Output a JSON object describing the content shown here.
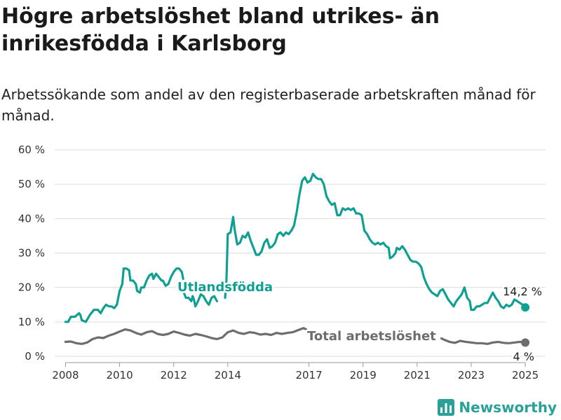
{
  "title": "Högre arbetslöshet bland utrikes- än inrikesfödda i Karlsborg",
  "subtitle": "Arbetssökande som andel av den registerbaserade arbetskraften månad för månad.",
  "brand": "Newsworthy",
  "colors": {
    "utlandsfodda": "#0fa093",
    "total": "#6d6d6d",
    "grid": "#dddddd",
    "brand": "#2aa198"
  },
  "chart_data": {
    "type": "line",
    "title": "Högre arbetslöshet bland utrikes- än inrikesfödda i Karlsborg",
    "subtitle": "Arbetssökande som andel av den registerbaserade arbetskraften månad för månad.",
    "xlabel": "",
    "ylabel": "",
    "xlim": [
      2007.6,
      2025.75
    ],
    "ylim": [
      0,
      60
    ],
    "yticks": [
      0,
      10,
      20,
      30,
      40,
      50,
      60
    ],
    "ytick_labels": [
      "0 %",
      "10 %",
      "20 %",
      "30 %",
      "40 %",
      "50 %",
      "60 %"
    ],
    "xticks": [
      2008,
      2010,
      2012,
      2014,
      2017,
      2019,
      2021,
      2023,
      2025
    ],
    "xtick_labels": [
      "2008",
      "2010",
      "2012",
      "2014",
      "2017",
      "2019",
      "2021",
      "2023",
      "2025"
    ],
    "grid": "horizontal",
    "legend": "direct labels",
    "series": [
      {
        "name": "Utlandsfödda",
        "key": "utlandsfodda",
        "end_label": "14,2 %",
        "segments": [
          [
            [
              2008.0,
              10
            ],
            [
              2008.1,
              10
            ],
            [
              2008.2,
              11.5
            ],
            [
              2008.35,
              11.5
            ],
            [
              2008.5,
              12.5
            ],
            [
              2008.55,
              12
            ],
            [
              2008.6,
              10.5
            ],
            [
              2008.75,
              10
            ],
            [
              2008.9,
              12
            ],
            [
              2009.05,
              13.5
            ],
            [
              2009.2,
              13.5
            ],
            [
              2009.3,
              12.5
            ],
            [
              2009.4,
              14
            ],
            [
              2009.5,
              15
            ],
            [
              2009.6,
              14.5
            ],
            [
              2009.7,
              14.5
            ],
            [
              2009.8,
              14
            ],
            [
              2009.9,
              15
            ],
            [
              2009.95,
              17
            ],
            [
              2010.0,
              19
            ],
            [
              2010.05,
              20
            ],
            [
              2010.1,
              21
            ],
            [
              2010.15,
              25.5
            ],
            [
              2010.25,
              25.5
            ],
            [
              2010.35,
              25
            ],
            [
              2010.4,
              22
            ],
            [
              2010.5,
              22
            ],
            [
              2010.6,
              21
            ],
            [
              2010.65,
              19
            ],
            [
              2010.75,
              18.5
            ],
            [
              2010.8,
              20
            ],
            [
              2010.9,
              20
            ],
            [
              2011.0,
              22
            ],
            [
              2011.1,
              23.5
            ],
            [
              2011.2,
              24
            ],
            [
              2011.25,
              22.5
            ],
            [
              2011.35,
              24
            ],
            [
              2011.45,
              23
            ],
            [
              2011.55,
              22
            ],
            [
              2011.6,
              22
            ],
            [
              2011.7,
              20.5
            ],
            [
              2011.8,
              21
            ],
            [
              2011.9,
              23
            ],
            [
              2012.0,
              24.5
            ],
            [
              2012.1,
              25.5
            ],
            [
              2012.2,
              25.5
            ],
            [
              2012.3,
              24.5
            ],
            [
              2012.35,
              22.5
            ]
          ],
          [
            [
              2012.35,
              19
            ],
            [
              2012.45,
              17
            ],
            [
              2012.55,
              17
            ],
            [
              2012.65,
              16
            ],
            [
              2012.7,
              17.5
            ],
            [
              2012.75,
              16.5
            ],
            [
              2012.8,
              14.5
            ],
            [
              2012.9,
              16
            ],
            [
              2013.0,
              18
            ],
            [
              2013.1,
              17.5
            ],
            [
              2013.2,
              16
            ],
            [
              2013.3,
              15
            ],
            [
              2013.4,
              17
            ],
            [
              2013.5,
              17.5
            ],
            [
              2013.6,
              16
            ]
          ],
          [
            [
              2013.9,
              17
            ],
            [
              2013.95,
              22
            ],
            [
              2014.0,
              35.5
            ],
            [
              2014.1,
              36
            ],
            [
              2014.2,
              40.5
            ],
            [
              2014.25,
              37
            ],
            [
              2014.35,
              32.5
            ],
            [
              2014.45,
              33
            ],
            [
              2014.55,
              35
            ],
            [
              2014.65,
              34.5
            ],
            [
              2014.75,
              36
            ],
            [
              2014.85,
              33.5
            ],
            [
              2014.95,
              31.5
            ],
            [
              2015.05,
              29.5
            ],
            [
              2015.15,
              29.5
            ],
            [
              2015.25,
              30.5
            ],
            [
              2015.35,
              33
            ],
            [
              2015.45,
              34
            ],
            [
              2015.55,
              31.5
            ],
            [
              2015.65,
              32
            ],
            [
              2015.75,
              33
            ],
            [
              2015.85,
              35.5
            ],
            [
              2015.95,
              36
            ],
            [
              2016.05,
              35
            ],
            [
              2016.15,
              36
            ],
            [
              2016.25,
              35.5
            ],
            [
              2016.35,
              36.5
            ],
            [
              2016.45,
              38
            ],
            [
              2016.55,
              42
            ],
            [
              2016.65,
              47
            ],
            [
              2016.75,
              51
            ],
            [
              2016.85,
              52
            ],
            [
              2016.95,
              50.5
            ],
            [
              2017.05,
              51
            ],
            [
              2017.15,
              53
            ],
            [
              2017.25,
              52
            ],
            [
              2017.35,
              51.5
            ],
            [
              2017.45,
              51.5
            ],
            [
              2017.55,
              50
            ],
            [
              2017.65,
              46.5
            ],
            [
              2017.75,
              45
            ],
            [
              2017.85,
              44
            ],
            [
              2017.95,
              44.5
            ],
            [
              2018.05,
              41
            ],
            [
              2018.15,
              41
            ],
            [
              2018.25,
              43
            ],
            [
              2018.35,
              42.5
            ],
            [
              2018.45,
              43
            ],
            [
              2018.55,
              42.5
            ],
            [
              2018.65,
              43
            ],
            [
              2018.75,
              41.5
            ],
            [
              2018.85,
              41.5
            ],
            [
              2018.95,
              41
            ],
            [
              2019.05,
              36.5
            ],
            [
              2019.15,
              35.5
            ],
            [
              2019.25,
              34
            ],
            [
              2019.35,
              33
            ],
            [
              2019.45,
              32.5
            ],
            [
              2019.55,
              33
            ],
            [
              2019.65,
              32.5
            ],
            [
              2019.75,
              33
            ],
            [
              2019.85,
              32
            ],
            [
              2019.95,
              31.5
            ],
            [
              2020.0,
              28.5
            ],
            [
              2020.1,
              29
            ],
            [
              2020.2,
              30
            ],
            [
              2020.25,
              31.5
            ],
            [
              2020.35,
              31
            ],
            [
              2020.45,
              32
            ],
            [
              2020.55,
              31
            ],
            [
              2020.65,
              29.5
            ],
            [
              2020.75,
              28
            ],
            [
              2020.85,
              27.5
            ],
            [
              2020.95,
              27.5
            ],
            [
              2021.05,
              27
            ],
            [
              2021.15,
              26
            ],
            [
              2021.25,
              23
            ],
            [
              2021.35,
              21
            ],
            [
              2021.45,
              19.5
            ],
            [
              2021.55,
              18.5
            ],
            [
              2021.65,
              18
            ],
            [
              2021.75,
              17.5
            ],
            [
              2021.85,
              19
            ],
            [
              2021.95,
              19.5
            ],
            [
              2022.05,
              18
            ],
            [
              2022.15,
              16.5
            ],
            [
              2022.25,
              15.5
            ],
            [
              2022.35,
              14.5
            ],
            [
              2022.45,
              16
            ],
            [
              2022.55,
              17
            ],
            [
              2022.65,
              18
            ],
            [
              2022.75,
              20
            ],
            [
              2022.85,
              17
            ],
            [
              2022.95,
              16
            ],
            [
              2023.0,
              13.5
            ],
            [
              2023.1,
              13.5
            ],
            [
              2023.2,
              14.5
            ],
            [
              2023.3,
              14.5
            ],
            [
              2023.4,
              15
            ],
            [
              2023.5,
              15.5
            ],
            [
              2023.6,
              15.5
            ],
            [
              2023.7,
              17
            ],
            [
              2023.8,
              18.5
            ],
            [
              2023.9,
              17
            ],
            [
              2024.0,
              16
            ],
            [
              2024.1,
              14.5
            ],
            [
              2024.2,
              14
            ],
            [
              2024.3,
              15
            ],
            [
              2024.4,
              14.5
            ],
            [
              2024.5,
              15
            ],
            [
              2024.6,
              16.5
            ],
            [
              2024.7,
              16
            ],
            [
              2024.8,
              15.5
            ],
            [
              2024.9,
              15
            ],
            [
              2025.0,
              14.2
            ]
          ]
        ]
      },
      {
        "name": "Total arbetslöshet",
        "key": "total",
        "end_label": "4 %",
        "segments": [
          [
            [
              2008.0,
              4.2
            ],
            [
              2008.2,
              4.3
            ],
            [
              2008.4,
              3.8
            ],
            [
              2008.6,
              3.6
            ],
            [
              2008.8,
              4
            ],
            [
              2009.0,
              5
            ],
            [
              2009.2,
              5.5
            ],
            [
              2009.4,
              5.3
            ],
            [
              2009.6,
              6
            ],
            [
              2009.8,
              6.5
            ],
            [
              2010.0,
              7.2
            ],
            [
              2010.2,
              7.8
            ],
            [
              2010.4,
              7.5
            ],
            [
              2010.6,
              6.8
            ],
            [
              2010.8,
              6.3
            ],
            [
              2011.0,
              7
            ],
            [
              2011.2,
              7.3
            ],
            [
              2011.4,
              6.5
            ],
            [
              2011.6,
              6.2
            ],
            [
              2011.8,
              6.5
            ],
            [
              2012.0,
              7.2
            ],
            [
              2012.2,
              6.8
            ],
            [
              2012.4,
              6.3
            ],
            [
              2012.6,
              6
            ],
            [
              2012.8,
              6.5
            ],
            [
              2013.0,
              6.2
            ],
            [
              2013.2,
              5.8
            ],
            [
              2013.4,
              5.3
            ],
            [
              2013.6,
              5
            ],
            [
              2013.8,
              5.5
            ],
            [
              2014.0,
              7
            ],
            [
              2014.2,
              7.5
            ],
            [
              2014.4,
              6.8
            ],
            [
              2014.6,
              6.5
            ],
            [
              2014.8,
              7
            ],
            [
              2015.0,
              6.8
            ],
            [
              2015.2,
              6.3
            ],
            [
              2015.4,
              6.5
            ],
            [
              2015.6,
              6.2
            ],
            [
              2015.8,
              6.8
            ],
            [
              2016.0,
              6.5
            ],
            [
              2016.2,
              6.8
            ],
            [
              2016.4,
              7
            ],
            [
              2016.6,
              7.6
            ],
            [
              2016.8,
              8.2
            ],
            [
              2016.9,
              7.8
            ]
          ],
          [
            [
              2021.9,
              5.2
            ],
            [
              2022.0,
              4.8
            ],
            [
              2022.2,
              4.2
            ],
            [
              2022.4,
              3.9
            ],
            [
              2022.6,
              4.5
            ],
            [
              2022.8,
              4.2
            ],
            [
              2023.0,
              4
            ],
            [
              2023.2,
              3.8
            ],
            [
              2023.4,
              3.8
            ],
            [
              2023.6,
              3.6
            ],
            [
              2023.8,
              4
            ],
            [
              2024.0,
              4.2
            ],
            [
              2024.2,
              3.9
            ],
            [
              2024.4,
              3.8
            ],
            [
              2024.6,
              4
            ],
            [
              2024.8,
              4.2
            ],
            [
              2025.0,
              4.0
            ]
          ]
        ]
      }
    ]
  }
}
